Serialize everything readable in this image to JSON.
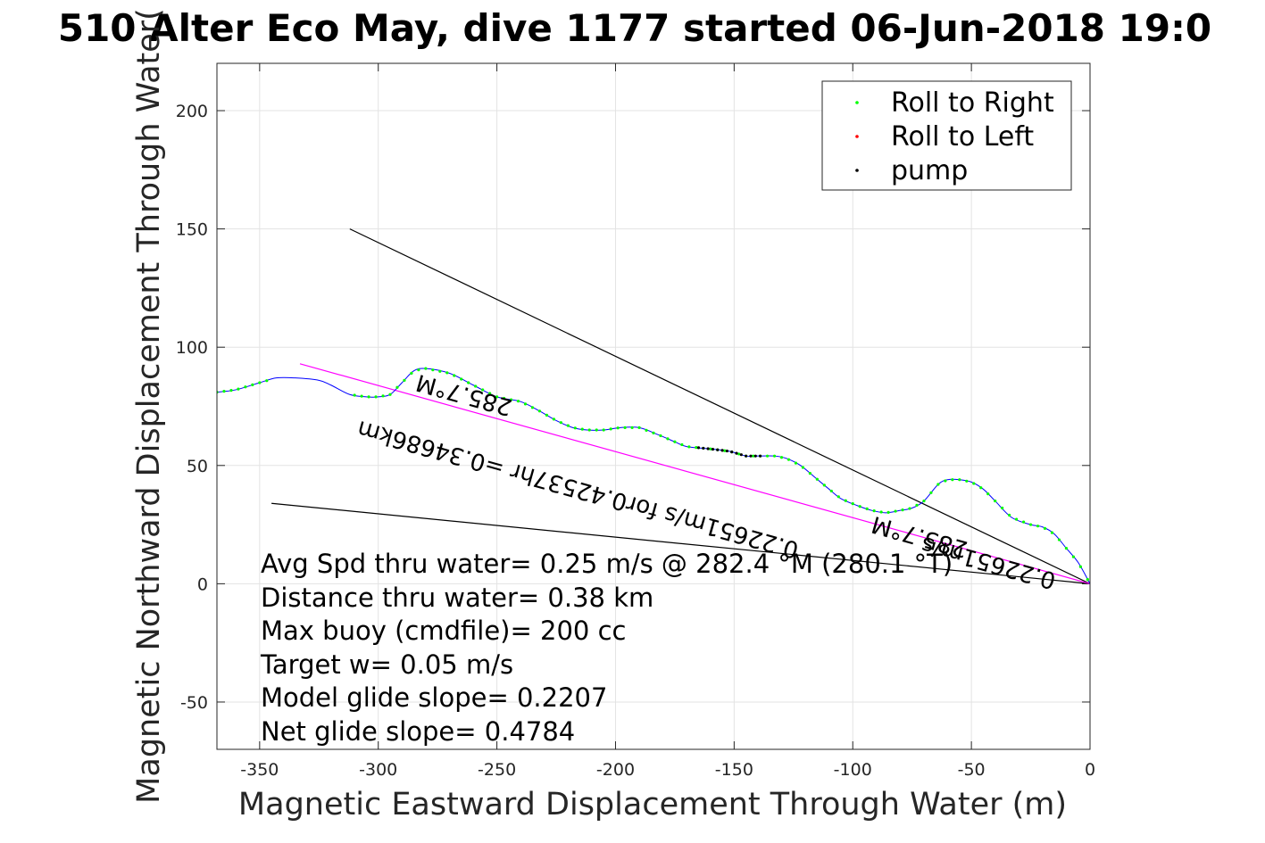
{
  "chart_data": {
    "type": "line",
    "title": "510 Alter Eco May, dive 1177 started 06-Jun-2018 19:0",
    "xlabel": "Magnetic Eastward Displacement Through Water (m)",
    "ylabel": "Magnetic Northward Displacement Through Water(",
    "xlim": [
      -368,
      0
    ],
    "ylim": [
      -70,
      220
    ],
    "grid": true,
    "x_ticks": [
      -350,
      -300,
      -250,
      -200,
      -150,
      -100,
      -50,
      0
    ],
    "y_ticks": [
      -50,
      0,
      50,
      100,
      150,
      200
    ],
    "x_tick_labels": [
      "-350",
      "-300",
      "-250",
      "-200",
      "-150",
      "-100",
      "-50",
      "0"
    ],
    "y_tick_labels": [
      "-50",
      "0",
      "50",
      "100",
      "150",
      "200"
    ],
    "legend_position": "top-right",
    "legend": [
      {
        "name": "Roll to Right",
        "color": "#00ff00"
      },
      {
        "name": "Roll to Left",
        "color": "#ff0000"
      },
      {
        "name": "pump",
        "color": "#000000"
      }
    ],
    "track": {
      "color": "#0000ff",
      "x": [
        -368,
        -360,
        -350,
        -343,
        -335,
        -325,
        -320,
        -312,
        -305,
        -300,
        -295,
        -290,
        -285,
        -280,
        -270,
        -260,
        -250,
        -240,
        -232,
        -225,
        -218,
        -212,
        -205,
        -198,
        -190,
        -182,
        -175,
        -170,
        -160,
        -152,
        -145,
        -140,
        -133,
        -128,
        -122,
        -116,
        -110,
        -105,
        -98,
        -92,
        -86,
        -80,
        -75,
        -70,
        -64,
        -60,
        -55,
        -50,
        -45,
        -40,
        -33,
        -25,
        -20,
        -15,
        -10,
        -5,
        0
      ],
      "y": [
        81,
        82,
        85,
        87,
        87,
        86,
        84,
        80,
        79,
        79,
        80,
        85,
        90,
        91,
        89,
        84,
        79,
        77,
        73,
        69,
        66,
        65,
        65,
        66,
        66,
        63,
        60,
        58,
        57,
        56,
        54,
        54,
        54,
        53,
        50,
        45,
        40,
        36,
        33,
        31,
        30,
        31,
        32,
        35,
        42,
        44,
        44,
        43,
        40,
        35,
        28,
        25,
        24,
        21,
        15,
        9,
        0
      ]
    },
    "roll_right_x": [
      -368,
      -365,
      -362,
      -359,
      -356,
      -353,
      -350,
      -347,
      -310,
      -307,
      -304,
      -301,
      -298,
      -295,
      -292,
      -289,
      -286,
      -283,
      -280,
      -277,
      -274,
      -271,
      -268,
      -265,
      -262,
      -259,
      -256,
      -253,
      -250,
      -247,
      -244,
      -241,
      -238,
      -235,
      -232,
      -229,
      -226,
      -223,
      -220,
      -217,
      -214,
      -211,
      -208,
      -205,
      -202,
      -199,
      -196,
      -193,
      -190,
      -187,
      -184,
      -181,
      -178,
      -175,
      -172,
      -169,
      -166,
      -163,
      -160,
      -157,
      -154,
      -151,
      -148,
      -145,
      -142,
      -139,
      -136,
      -133,
      -130,
      -127,
      -124,
      -121,
      -118,
      -115,
      -112,
      -109,
      -106,
      -103,
      -100,
      -97,
      -94,
      -91,
      -88,
      -85,
      -82,
      -79,
      -76,
      -73,
      -70,
      -67,
      -64,
      -61,
      -58,
      -55,
      -52,
      -49,
      -46,
      -43,
      -40,
      -37,
      -34,
      -31,
      -28,
      -25,
      -22,
      -19,
      -16,
      -13,
      -10,
      -7,
      -4,
      -1
    ],
    "pump_x_range": [
      -165,
      -138
    ],
    "reference_lines": [
      {
        "name": "upper heading line",
        "x": [
          -312,
          0
        ],
        "y": [
          150,
          0
        ],
        "color": "#000000"
      },
      {
        "name": "lower heading line",
        "x": [
          -345,
          0
        ],
        "y": [
          34,
          0
        ],
        "color": "#000000"
      },
      {
        "name": "average track line",
        "x": [
          -333,
          0
        ],
        "y": [
          93,
          0
        ],
        "color": "#ff00ff"
      }
    ],
    "rotated_labels": [
      {
        "text": "285.7°M",
        "x": -263,
        "y": 83
      },
      {
        "text": "0.22651m/s for0.42537hr =0.34686km",
        "x": -215,
        "y": 43
      },
      {
        "text": "285.7°M",
        "x": -71,
        "y": 23
      },
      {
        "text": "0.22651m/s",
        "x": -42,
        "y": 12
      }
    ],
    "annotations": [
      "Avg Spd thru water=  0.25 m/s @ 282.4 °M (280.1 °T)",
      "Distance thru water=  0.38 km",
      "Max buoy (cmdfile)= 200 cc",
      "Target w= 0.05 m/s",
      "Model glide slope= 0.2207",
      "Net glide slope= 0.4784"
    ]
  }
}
